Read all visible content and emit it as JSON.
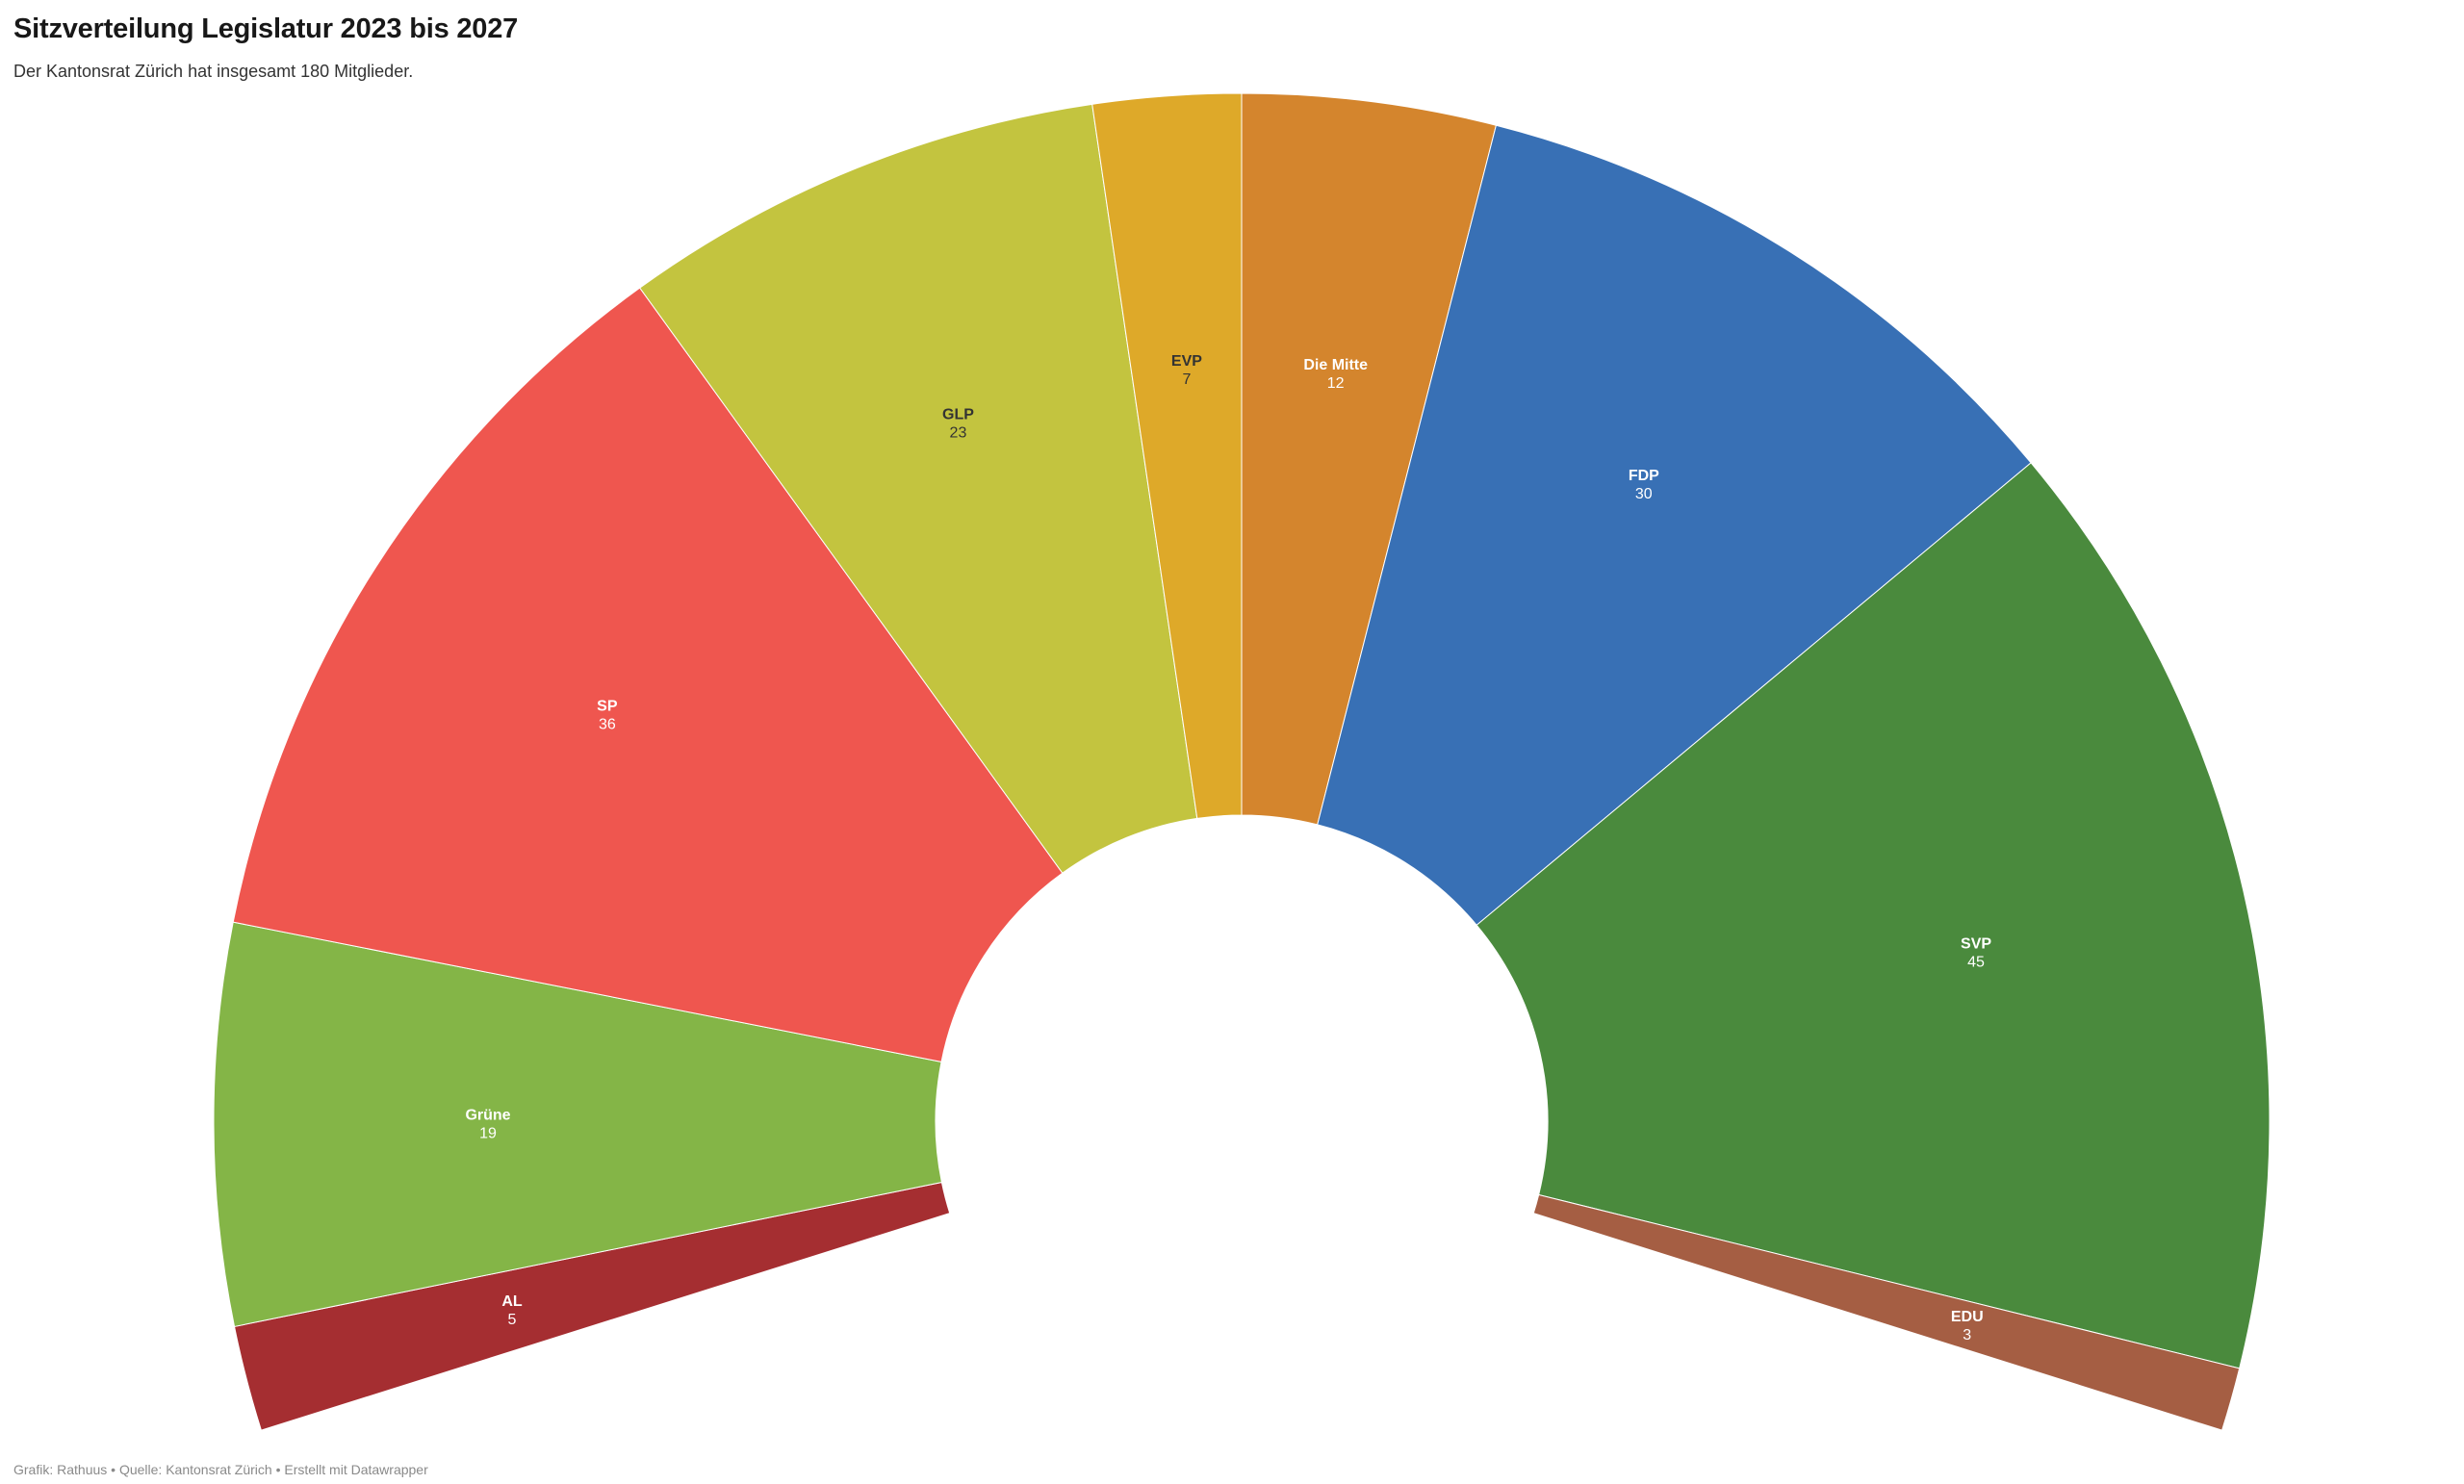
{
  "header": {
    "title": "Sitzverteilung Legislatur 2023 bis 2027",
    "subtitle": "Der Kantonsrat Zürich hat insgesamt 180 Mitglieder."
  },
  "footer": {
    "credits": "Grafik: Rathuus • Quelle: Kantonsrat Zürich • Erstellt mit Datawrapper"
  },
  "chart_data": {
    "type": "pie",
    "variant": "semicircle-donut",
    "total": 180,
    "slices": [
      {
        "label": "AL",
        "value": 5,
        "color": "#a52e31",
        "label_color": "#ffffff"
      },
      {
        "label": "Grüne",
        "value": 19,
        "color": "#84b547",
        "label_color": "#ffffff"
      },
      {
        "label": "SP",
        "value": 36,
        "color": "#ef564f",
        "label_color": "#ffffff"
      },
      {
        "label": "GLP",
        "value": 23,
        "color": "#c3c43f",
        "label_color": "#333333"
      },
      {
        "label": "EVP",
        "value": 7,
        "color": "#dea929",
        "label_color": "#333333"
      },
      {
        "label": "Die Mitte",
        "value": 12,
        "color": "#d4852d",
        "label_color": "#ffffff"
      },
      {
        "label": "FDP",
        "value": 30,
        "color": "#3870b5",
        "label_color": "#ffffff"
      },
      {
        "label": "SVP",
        "value": 45,
        "color": "#4a8a3d",
        "label_color": "#ffffff"
      },
      {
        "label": "EDU",
        "value": 3,
        "color": "#a55e43",
        "label_color": "#ffffff"
      }
    ]
  }
}
